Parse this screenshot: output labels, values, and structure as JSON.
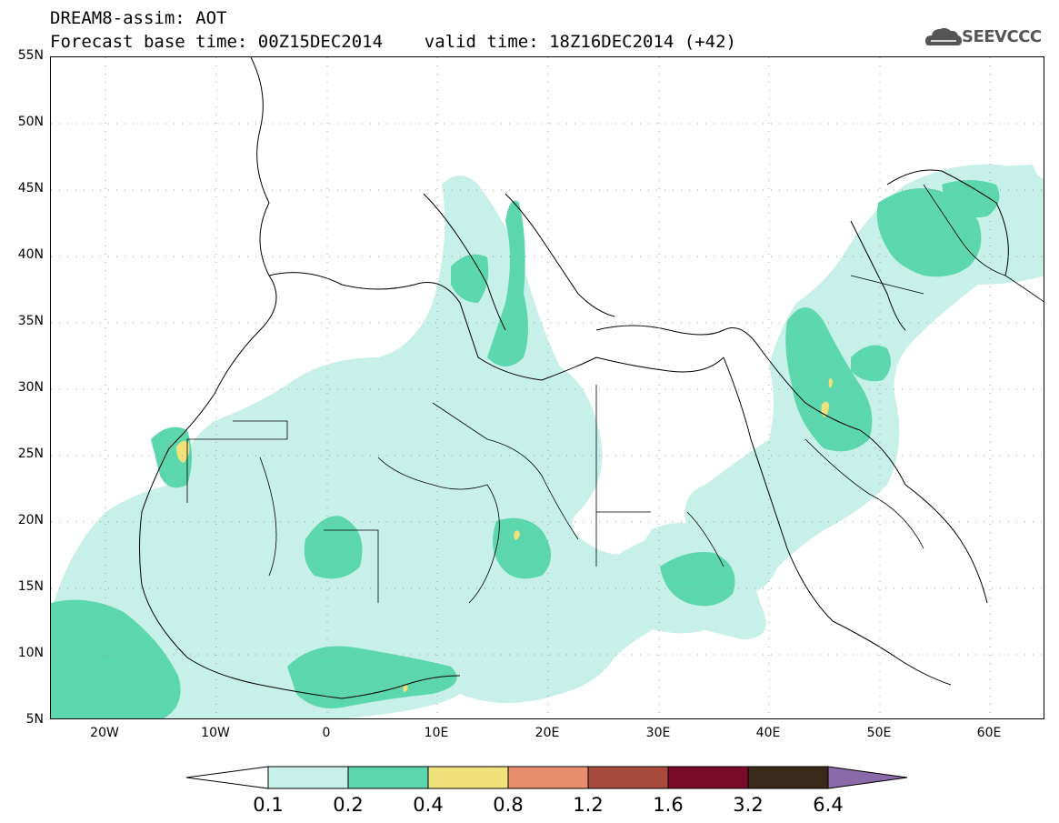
{
  "title": {
    "line1": "DREAM8-assim: AOT",
    "line2": "Forecast base time: 00Z15DEC2014    valid time: 18Z16DEC2014 (+42)"
  },
  "logo": {
    "text": "SEEVCCC",
    "icon": "cloud-logo-icon"
  },
  "map": {
    "variable": "AOT",
    "lon_range": [
      -25,
      65
    ],
    "lat_range": [
      5,
      55
    ],
    "lat_labels": [
      "55N",
      "50N",
      "45N",
      "40N",
      "35N",
      "30N",
      "25N",
      "20N",
      "15N",
      "10N",
      "5N"
    ],
    "lon_labels": [
      "20W",
      "10W",
      "0",
      "10E",
      "20E",
      "30E",
      "40E",
      "50E",
      "60E"
    ]
  },
  "colorbar": {
    "levels": [
      "0.1",
      "0.2",
      "0.4",
      "0.8",
      "1.2",
      "1.6",
      "3.2",
      "6.4"
    ],
    "colors": [
      "#ffffff",
      "#c6f0e8",
      "#5cd6ac",
      "#f0e27a",
      "#e88e6e",
      "#a84b3c",
      "#7a0a2a",
      "#3a2a1a",
      "#8a6aa8"
    ]
  }
}
